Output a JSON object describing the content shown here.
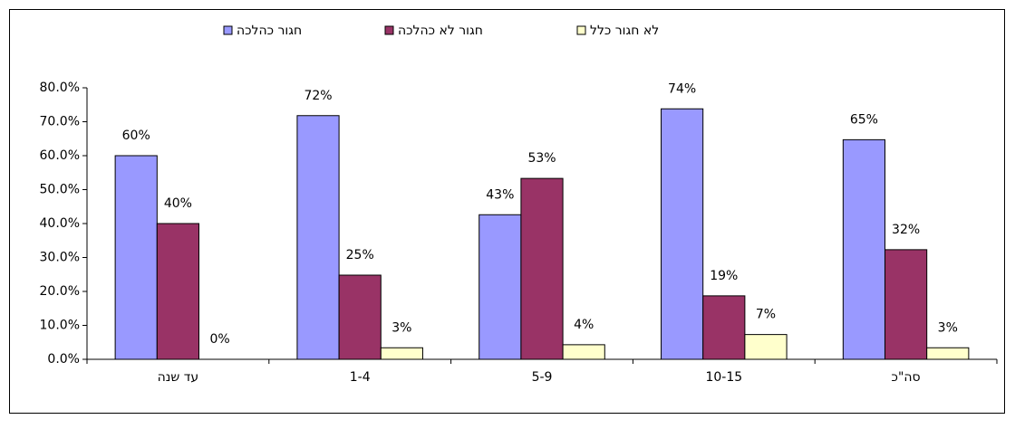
{
  "chart_data": {
    "type": "bar",
    "categories": [
      "עד שנה",
      "1-4",
      "5-9",
      "10-15",
      "סה\"כ"
    ],
    "series": [
      {
        "name": "חגור כהלכה",
        "color": "#9999ff",
        "values": [
          60,
          71.8,
          42.6,
          73.8,
          64.7
        ],
        "value_labels": [
          "60%",
          "72%",
          "43%",
          "74%",
          "65%"
        ]
      },
      {
        "name": "חגור לא כהלכה",
        "color": "#993366",
        "values": [
          40,
          24.8,
          53.3,
          18.7,
          32.3
        ],
        "value_labels": [
          "40%",
          "25%",
          "53%",
          "19%",
          "32%"
        ]
      },
      {
        "name": "לא חגור כלל",
        "color": "#ffffcc",
        "values": [
          0,
          3.4,
          4.3,
          7.3,
          3.4
        ],
        "value_labels": [
          "0%",
          "3%",
          "4%",
          "7%",
          "3%"
        ]
      }
    ],
    "ylim": [
      0,
      80
    ],
    "yticks": [
      {
        "value": 0,
        "label": "0.0%"
      },
      {
        "value": 10,
        "label": "10.0%"
      },
      {
        "value": 20,
        "label": "20.0%"
      },
      {
        "value": 30,
        "label": "30.0%"
      },
      {
        "value": 40,
        "label": "40.0%"
      },
      {
        "value": 50,
        "label": "50.0%"
      },
      {
        "value": 60,
        "label": "60.0%"
      },
      {
        "value": 70,
        "label": "70.0%"
      },
      {
        "value": 80,
        "label": "80.0%"
      }
    ],
    "legend": "top"
  }
}
